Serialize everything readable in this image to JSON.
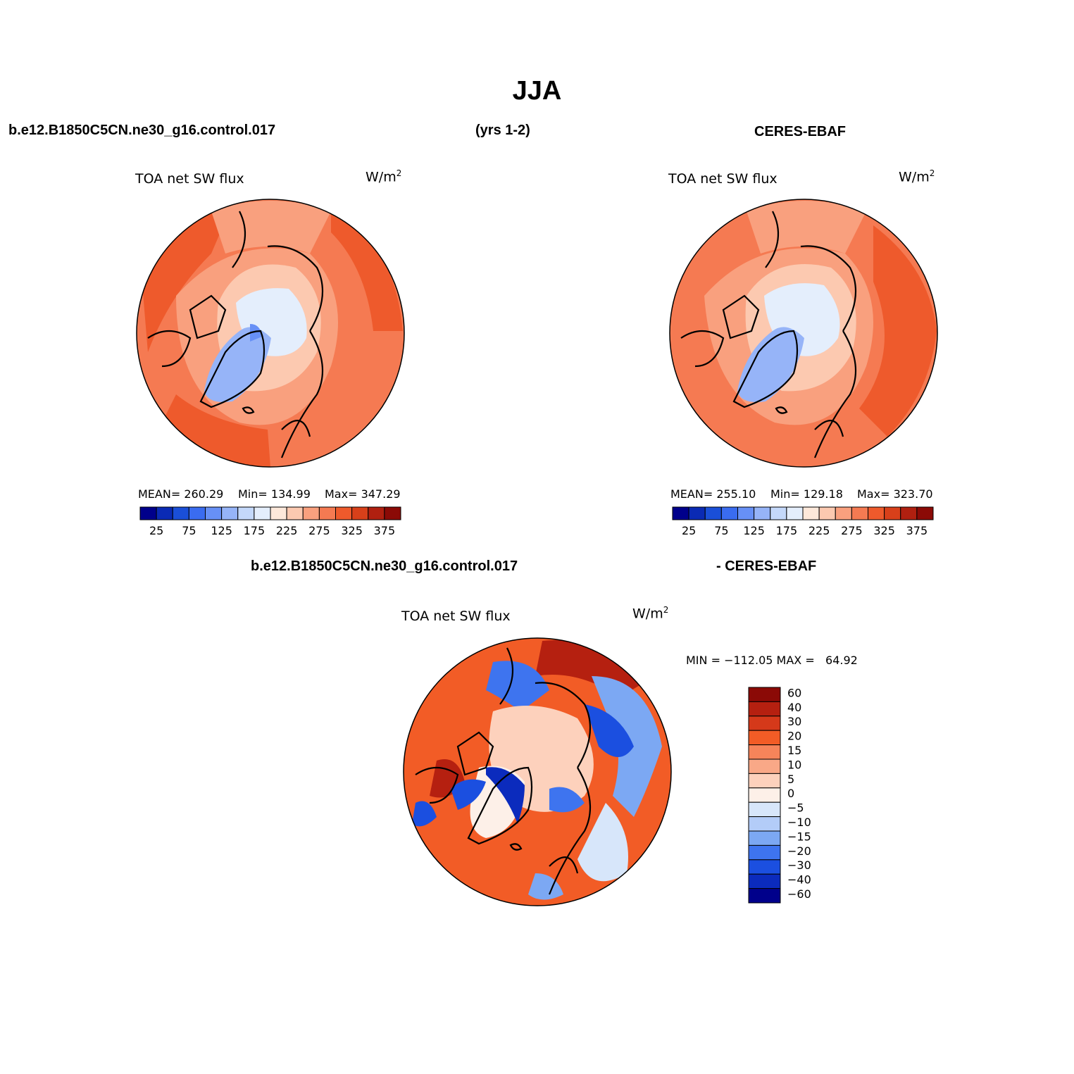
{
  "figure": {
    "title": "JJA",
    "case_name": "b.e12.B1850C5CN.ne30_g16.control.017",
    "years": "(yrs 1-2)",
    "obs_name": "CERES-EBAF",
    "diff_case": "b.e12.B1850C5CN.ne30_g16.control.017",
    "diff_obs": "- CERES-EBAF"
  },
  "panels": {
    "model": {
      "variable": "TOA net SW flux",
      "units_base": "W/m",
      "units_exp": "2",
      "mean_label": "MEAN= 260.29",
      "min_label": "Min= 134.99",
      "max_label": "Max= 347.29"
    },
    "obs": {
      "variable": "TOA net SW flux",
      "units_base": "W/m",
      "units_exp": "2",
      "mean_label": "MEAN= 255.10",
      "min_label": "Min= 129.18",
      "max_label": "Max= 323.70"
    },
    "diff": {
      "variable": "TOA net SW flux",
      "units_base": "W/m",
      "units_exp": "2",
      "minmax_label": "MIN = −112.05 MAX =   64.92"
    }
  },
  "colorbars": {
    "abs_colors": [
      "#00008b",
      "#0a2ab4",
      "#1a4fd8",
      "#3a6cf0",
      "#6790f6",
      "#96b4f8",
      "#c4d8fa",
      "#e4eefc",
      "#fde8da",
      "#fcc9b0",
      "#f9a07e",
      "#f57a52",
      "#ee5a2c",
      "#d8401a",
      "#b02010",
      "#8b0a06"
    ],
    "abs_ticks": [
      "25",
      "75",
      "125",
      "175",
      "225",
      "275",
      "325",
      "375"
    ],
    "diff_colors": [
      "#8b0a06",
      "#b52010",
      "#d5391a",
      "#f25c26",
      "#f6845a",
      "#f9a887",
      "#fdd1bc",
      "#fdf0e8",
      "#d7e6fa",
      "#b3ccf8",
      "#7ca8f3",
      "#3e74ef",
      "#1b4fe0",
      "#0b2bbd",
      "#00008b"
    ],
    "diff_ticks": [
      "60",
      "40",
      "30",
      "20",
      "15",
      "10",
      "5",
      "0",
      "−5",
      "−10",
      "−15",
      "−20",
      "−30",
      "−40",
      "−60"
    ]
  }
}
